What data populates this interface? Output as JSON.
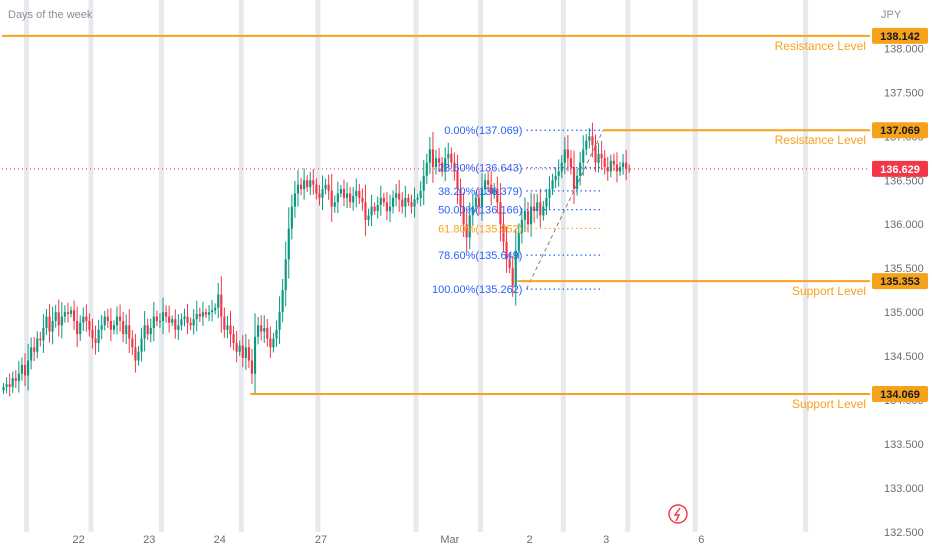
{
  "header": {
    "subtitle": "Days of the week",
    "currency": "JPY"
  },
  "colors": {
    "up": "#089981",
    "down": "#f23645",
    "level": "#f7a21b",
    "fib": "#2962ff",
    "fib_618": "#f7a21b",
    "current": "#f23645",
    "sep": "#e8e9ee",
    "axis_text": "#6a6d78"
  },
  "chart_data": {
    "type": "candlestick",
    "ylim": [
      132.5,
      138.55
    ],
    "y_ticks": [
      "138.000",
      "137.500",
      "137.000",
      "136.500",
      "136.000",
      "135.500",
      "135.000",
      "134.500",
      "134.000",
      "133.500",
      "133.000",
      "132.500"
    ],
    "x_ticks": [
      {
        "label": "22",
        "i": 25
      },
      {
        "label": "23",
        "i": 48
      },
      {
        "label": "24",
        "i": 71
      },
      {
        "label": "27",
        "i": 104
      },
      {
        "label": "Mar",
        "i": 146
      },
      {
        "label": "2",
        "i": 172
      },
      {
        "label": "3",
        "i": 197
      },
      {
        "label": "6",
        "i": 228
      }
    ],
    "day_separators": [
      8,
      29,
      52,
      78,
      103,
      135,
      156,
      183,
      204,
      226,
      262
    ],
    "x_range": [
      0,
      283
    ],
    "close": [
      134.15,
      134.18,
      134.15,
      134.25,
      134.22,
      134.3,
      134.4,
      134.28,
      134.45,
      134.6,
      134.55,
      134.7,
      134.68,
      134.82,
      134.95,
      134.78,
      134.9,
      135.0,
      134.85,
      134.95,
      135.0,
      134.98,
      135.02,
      134.9,
      134.75,
      134.88,
      134.95,
      134.9,
      134.8,
      134.7,
      134.65,
      134.8,
      134.85,
      134.95,
      134.9,
      134.8,
      134.85,
      134.95,
      134.9,
      134.75,
      134.85,
      134.7,
      134.6,
      134.45,
      134.55,
      134.7,
      134.85,
      134.75,
      134.82,
      134.95,
      134.9,
      134.9,
      135.0,
      134.95,
      134.88,
      134.92,
      134.8,
      134.85,
      134.92,
      134.95,
      134.88,
      134.85,
      134.92,
      134.98,
      134.95,
      135.0,
      134.97,
      135.0,
      135.02,
      135.05,
      135.2,
      134.95,
      134.8,
      134.85,
      134.75,
      134.65,
      134.55,
      134.62,
      134.48,
      134.6,
      134.45,
      134.3,
      134.72,
      134.85,
      134.78,
      134.82,
      134.7,
      134.6,
      134.7,
      134.8,
      135.0,
      135.25,
      135.6,
      135.95,
      136.2,
      136.35,
      136.45,
      136.4,
      136.5,
      136.42,
      136.5,
      136.45,
      136.35,
      136.3,
      136.4,
      136.45,
      136.38,
      136.2,
      136.25,
      136.35,
      136.4,
      136.3,
      136.35,
      136.25,
      136.32,
      136.38,
      136.3,
      136.25,
      136.05,
      136.1,
      136.2,
      136.15,
      136.22,
      136.3,
      136.25,
      136.15,
      136.2,
      136.3,
      136.35,
      136.28,
      136.2,
      136.3,
      136.25,
      136.2,
      136.28,
      136.3,
      136.38,
      136.55,
      136.7,
      136.85,
      136.65,
      136.75,
      136.7,
      136.6,
      136.75,
      136.8,
      136.7,
      136.6,
      136.4,
      136.2,
      136.0,
      135.85,
      136.1,
      136.2,
      136.3,
      136.2,
      136.4,
      136.5,
      136.45,
      136.35,
      136.4,
      136.25,
      136.0,
      135.8,
      135.6,
      135.5,
      135.3,
      135.7,
      135.9,
      136.05,
      136.15,
      136.0,
      136.2,
      136.15,
      136.25,
      136.1,
      136.2,
      136.3,
      136.4,
      136.5,
      136.55,
      136.6,
      136.7,
      136.85,
      136.75,
      136.65,
      136.4,
      136.55,
      136.7,
      136.85,
      136.95,
      137.0,
      136.9,
      136.7,
      136.8,
      136.75,
      136.65,
      136.6,
      136.72,
      136.68,
      136.6,
      136.65,
      136.7,
      136.63,
      136.629
    ],
    "current_price": "136.629",
    "levels": [
      {
        "price": 138.142,
        "tag": "138.142",
        "label": "Resistance Level",
        "i0": 0
      },
      {
        "price": 137.069,
        "tag": "137.069",
        "label": "Resistance Level",
        "i0": 196
      },
      {
        "price": 135.353,
        "tag": "135.353",
        "label": "Support Level",
        "i0": 168
      },
      {
        "price": 134.069,
        "tag": "134.069",
        "label": "Support Level",
        "i0": 81
      }
    ],
    "fib": {
      "i_label": 171,
      "i0": 171,
      "i1": 196,
      "levels": [
        {
          "price": 137.069,
          "text": "0.00%(137.069)"
        },
        {
          "price": 136.643,
          "text": "23.60%(136.643)"
        },
        {
          "price": 136.379,
          "text": "38.20%(136.379)"
        },
        {
          "price": 136.166,
          "text": "50.00%(136.166)"
        },
        {
          "price": 135.952,
          "text": "61.80%(135.952)",
          "highlight": true
        },
        {
          "price": 135.649,
          "text": "78.60%(135.649)"
        },
        {
          "price": 135.262,
          "text": "100.00%(135.262)"
        }
      ]
    }
  }
}
